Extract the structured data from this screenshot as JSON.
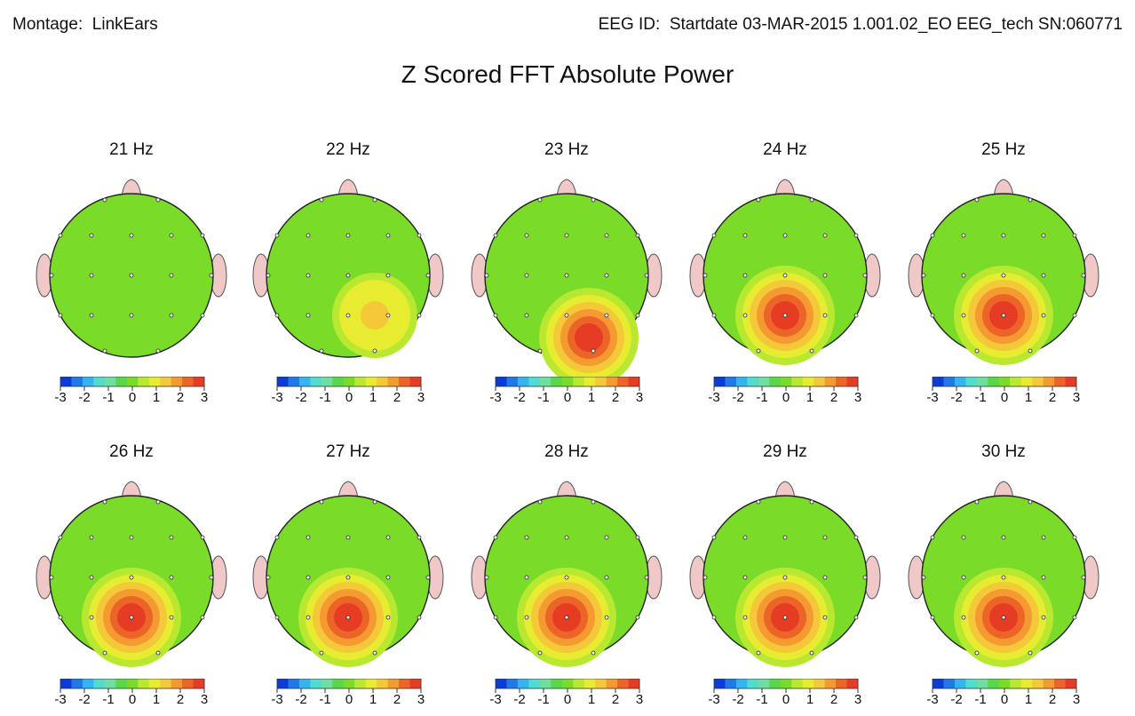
{
  "header": {
    "montage_label": "Montage:",
    "montage_value": "LinkEars",
    "eeg_id_label": "EEG ID:",
    "eeg_id_value": "Startdate 03-MAR-2015 1.001.02_EO EEG_tech SN:060771"
  },
  "chart_data": {
    "type": "heatmap",
    "title": "Z Scored FFT Absolute Power",
    "colorbar": {
      "range": [
        -3,
        3
      ],
      "ticks": [
        "-3",
        "-2",
        "-1",
        "0",
        "1",
        "2",
        "3"
      ],
      "colors": [
        "#0a3cdc",
        "#1f7ae8",
        "#34b4f0",
        "#50dcd0",
        "#6edfa0",
        "#58d848",
        "#7adc28",
        "#b8e830",
        "#e8ec30",
        "#f4c838",
        "#f49a30",
        "#ec6428",
        "#e63c24"
      ]
    },
    "head_color": "#f0c8c8",
    "maps": [
      {
        "label": "21 Hz",
        "hotspot": 0.4
      },
      {
        "label": "22 Hz",
        "hotspot": 1.3
      },
      {
        "label": "23 Hz",
        "hotspot": 2.6
      },
      {
        "label": "24 Hz",
        "hotspot": 3.0
      },
      {
        "label": "25 Hz",
        "hotspot": 3.0
      },
      {
        "label": "26 Hz",
        "hotspot": 3.0
      },
      {
        "label": "27 Hz",
        "hotspot": 3.0
      },
      {
        "label": "28 Hz",
        "hotspot": 3.0
      },
      {
        "label": "29 Hz",
        "hotspot": 3.0
      },
      {
        "label": "30 Hz",
        "hotspot": 3.0
      }
    ]
  }
}
